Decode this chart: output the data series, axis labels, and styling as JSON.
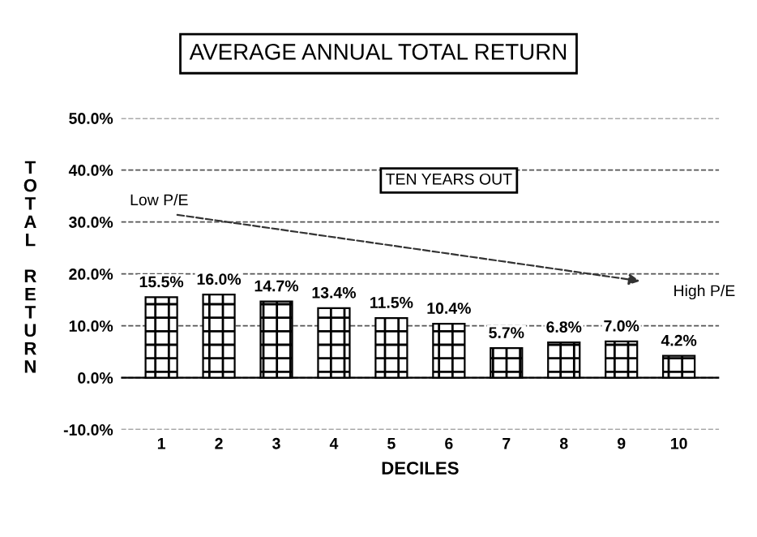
{
  "chart_data": {
    "type": "bar",
    "title": "AVERAGE ANNUAL TOTAL RETURN",
    "xlabel": "DECILES",
    "ylabel": "TOTAL RETURN",
    "categories": [
      "1",
      "2",
      "3",
      "4",
      "5",
      "6",
      "7",
      "8",
      "9",
      "10"
    ],
    "values": [
      15.5,
      16.0,
      14.7,
      13.4,
      11.5,
      10.4,
      5.7,
      6.8,
      7.0,
      4.2
    ],
    "value_labels": [
      "15.5%",
      "16.0%",
      "14.7%",
      "13.4%",
      "11.5%",
      "10.4%",
      "5.7%",
      "6.8%",
      "7.0%",
      "4.2%"
    ],
    "color": "#000000",
    "ylim": [
      -10,
      50
    ],
    "yticks": [
      {
        "value": -10,
        "label": "-10.0%"
      },
      {
        "value": 0,
        "label": "0.0%"
      },
      {
        "value": 10,
        "label": "10.0%"
      },
      {
        "value": 20,
        "label": "20.0%"
      },
      {
        "value": 30,
        "label": "30.0%"
      },
      {
        "value": 40,
        "label": "40.0%"
      },
      {
        "value": 50,
        "label": "50.0%"
      }
    ],
    "grid": "y",
    "line_style": "dashed",
    "legend": false,
    "annotations": [
      "TEN YEARS OUT",
      "Low P/E",
      "High P/E"
    ]
  }
}
